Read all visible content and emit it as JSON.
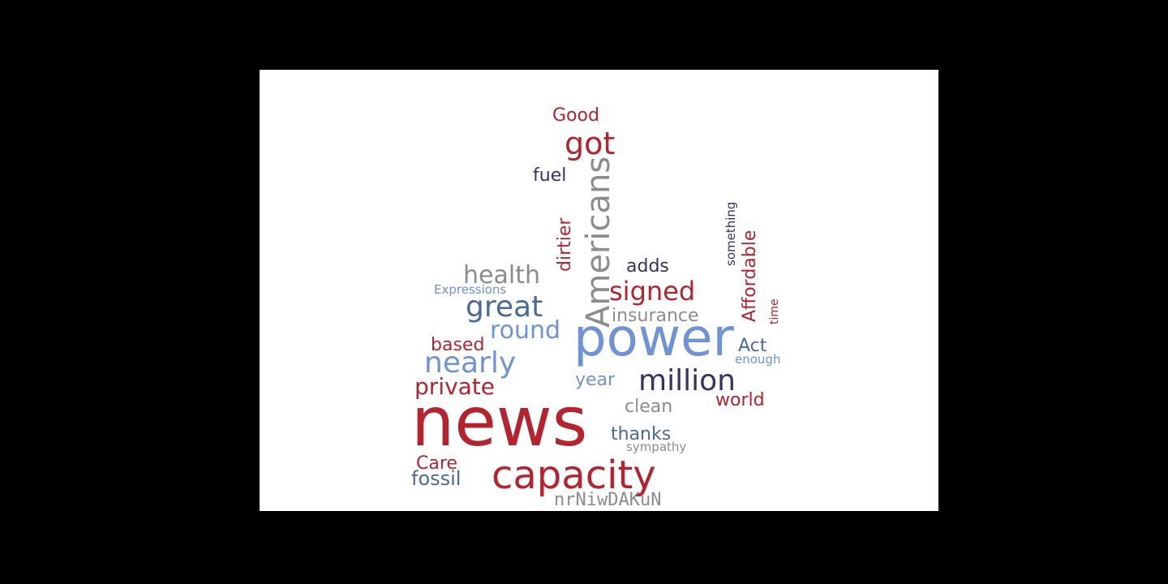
{
  "colors": {
    "background_outer": "#000000",
    "canvas": "#ffffff",
    "red": "#b5232e",
    "blue": "#6f93d6",
    "navy": "#333366",
    "steel": "#4a6b99",
    "gray": "#8c8c8c"
  },
  "words": {
    "good": "Good",
    "got": "got",
    "americans": "Americans",
    "fuel": "fuel",
    "dirtier": "dirtier",
    "something": "something",
    "affordable": "Affordable",
    "health": "health",
    "adds": "adds",
    "expressions": "Expressions",
    "signed": "signed",
    "great": "great",
    "insurance": "insurance",
    "time": "time",
    "round": "round",
    "power": "power",
    "based": "based",
    "act": "Act",
    "nearly": "nearly",
    "enough": "enough",
    "year": "year",
    "million": "million",
    "private": "private",
    "world": "world",
    "clean": "clean",
    "news": "news",
    "thanks": "thanks",
    "sympathy": "sympathy",
    "care": "Care",
    "capacity": "capacity",
    "fossil": "fossil",
    "nrniwdakun": "nrNiwDAKuN"
  }
}
